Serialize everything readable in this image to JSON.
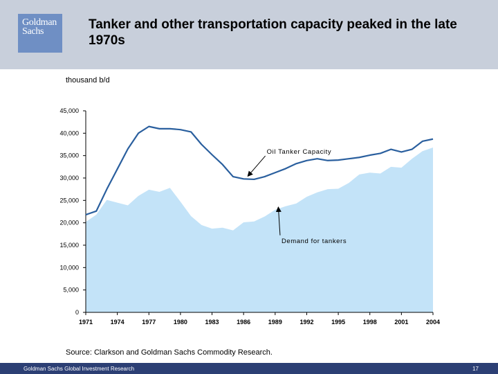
{
  "header": {
    "logo_line1": "Goldman",
    "logo_line2": "Sachs",
    "title": "Tanker and other transportation capacity peaked in the late 1970s"
  },
  "unit_label": "thousand b/d",
  "source": "Source: Clarkson and Goldman Sachs Commodity Research.",
  "footer": {
    "left": "Goldman Sachs Global Investment Research",
    "page": "17"
  },
  "colors": {
    "header_bg": "#c8cfdb",
    "logo_bg": "#6f8fc4",
    "area_fill": "#c3e3f8",
    "line": "#2a5f9e",
    "footer_bg": "#2c3f74"
  },
  "chart_data": {
    "type": "area",
    "title": "Tanker and other transportation capacity peaked in the late 1970s",
    "ylabel": "thousand b/d",
    "xlim": [
      1971,
      2004
    ],
    "ylim": [
      0,
      45000
    ],
    "yticks": [
      0,
      5000,
      10000,
      15000,
      20000,
      25000,
      30000,
      35000,
      40000,
      45000
    ],
    "ytick_labels": [
      "0",
      "5,000",
      "10,000",
      "15,000",
      "20,000",
      "25,000",
      "30,000",
      "35,000",
      "40,000",
      "45,000"
    ],
    "xticks": [
      1971,
      1974,
      1977,
      1980,
      1983,
      1986,
      1989,
      1992,
      1995,
      1998,
      2001,
      2004
    ],
    "xtick_labels": [
      "1971",
      "1974",
      "1977",
      "1980",
      "1983",
      "1986",
      "1989",
      "1992",
      "1995",
      "1998",
      "2001",
      "2004"
    ],
    "series": [
      {
        "name": "Oil Tanker Capacity",
        "kind": "line",
        "x": [
          1971,
          1972,
          1973,
          1974,
          1975,
          1976,
          1977,
          1978,
          1979,
          1980,
          1981,
          1982,
          1983,
          1984,
          1985,
          1986,
          1987,
          1988,
          1989,
          1990,
          1991,
          1992,
          1993,
          1994,
          1995,
          1996,
          1997,
          1998,
          1999,
          2000,
          2001,
          2002,
          2003,
          2004
        ],
        "values": [
          21800,
          22600,
          27500,
          32000,
          36500,
          40000,
          41500,
          41000,
          41000,
          40800,
          40300,
          37500,
          35200,
          33000,
          30300,
          29800,
          29700,
          30300,
          31200,
          32100,
          33200,
          33900,
          34300,
          33900,
          34000,
          34300,
          34600,
          35100,
          35500,
          36400,
          35800,
          36400,
          38200,
          38700
        ]
      },
      {
        "name": "Demand for tankers",
        "kind": "area",
        "x": [
          1971,
          1972,
          1973,
          1974,
          1975,
          1976,
          1977,
          1978,
          1979,
          1980,
          1981,
          1982,
          1983,
          1984,
          1985,
          1986,
          1987,
          1988,
          1989,
          1990,
          1991,
          1992,
          1993,
          1994,
          1995,
          1996,
          1997,
          1998,
          1999,
          2000,
          2001,
          2002,
          2003,
          2004
        ],
        "values": [
          20200,
          21800,
          25100,
          24500,
          23900,
          26000,
          27400,
          26900,
          27800,
          24700,
          21500,
          19500,
          18700,
          18900,
          18300,
          20100,
          20300,
          21400,
          22900,
          23700,
          24300,
          25800,
          26800,
          27500,
          27600,
          28900,
          30800,
          31200,
          31000,
          32500,
          32300,
          34300,
          36000,
          36800
        ]
      }
    ],
    "annotations": [
      {
        "text": "Oil Tanker Capacity",
        "label_x": 1988.2,
        "label_y": 35400,
        "arrow_to_x": 1986.4,
        "arrow_to_y": 30400
      },
      {
        "text": "Demand for tankers",
        "label_x": 1989.6,
        "label_y": 15500,
        "arrow_to_x": 1989.3,
        "arrow_to_y": 23500
      }
    ]
  }
}
